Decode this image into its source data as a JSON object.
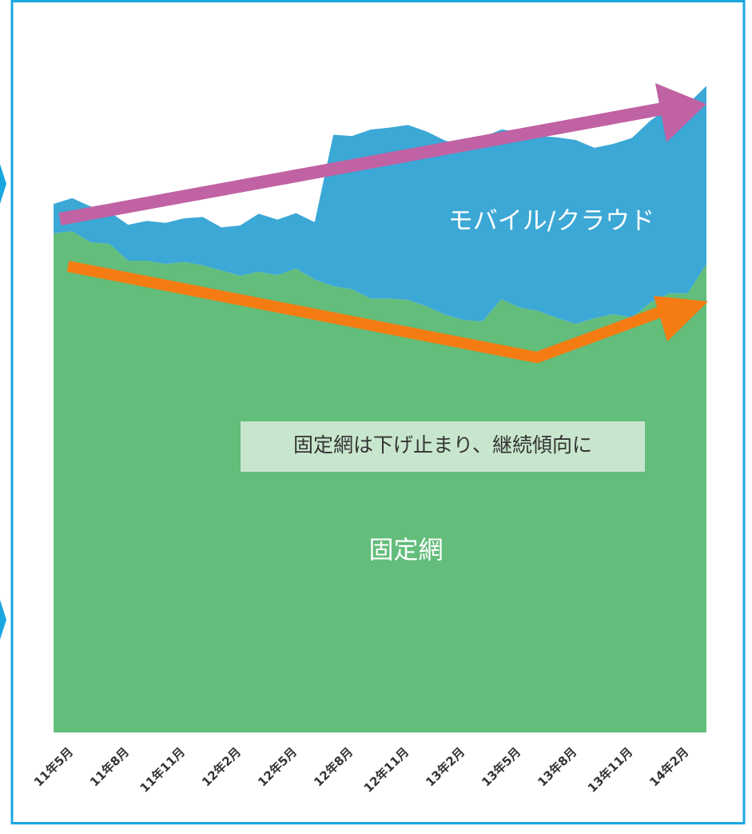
{
  "chart_data": {
    "type": "stacked_area",
    "categories": [
      "11年5月",
      null,
      null,
      "11年8月",
      null,
      null,
      "11年11月",
      null,
      null,
      "12年2月",
      null,
      null,
      "12年5月",
      null,
      null,
      "12年8月",
      null,
      null,
      "12年11月",
      null,
      null,
      "13年2月",
      null,
      null,
      "13年5月",
      null,
      null,
      "13年8月",
      null,
      null,
      "13年11月",
      null,
      null,
      "14年2月",
      null,
      null
    ],
    "series": [
      {
        "name": "固定網",
        "color": "#63bd7b",
        "values": [
          76.5,
          76.8,
          75.1,
          74.9,
          72.3,
          72.3,
          71.8,
          72.1,
          71.6,
          70.8,
          70.0,
          70.6,
          70.1,
          71.1,
          69.4,
          68.4,
          67.9,
          66.5,
          66.5,
          66.3,
          65.3,
          64.0,
          63.2,
          63.0,
          66.4,
          65.1,
          64.6,
          63.5,
          62.6,
          63.5,
          64.1,
          63.6,
          65.9,
          67.3,
          67.3,
          71.8
        ]
      },
      {
        "name": "モバイル/クラウド",
        "color": "#3ca8d6",
        "values": [
          4.5,
          5.1,
          5.5,
          4.9,
          5.5,
          6.1,
          6.3,
          6.7,
          7.4,
          6.6,
          7.7,
          8.9,
          8.5,
          8.5,
          8.8,
          23.2,
          23.5,
          25.9,
          26.2,
          26.8,
          26.8,
          26.7,
          26.8,
          28.2,
          26.0,
          27.0,
          26.8,
          27.7,
          28.2,
          26.1,
          26.1,
          27.5,
          27.9,
          28.4,
          29.0,
          27.3
        ]
      }
    ],
    "ylim": [
      0,
      100
    ],
    "annotations": [
      "固定網は下げ止まり、継続傾向に"
    ]
  }
}
